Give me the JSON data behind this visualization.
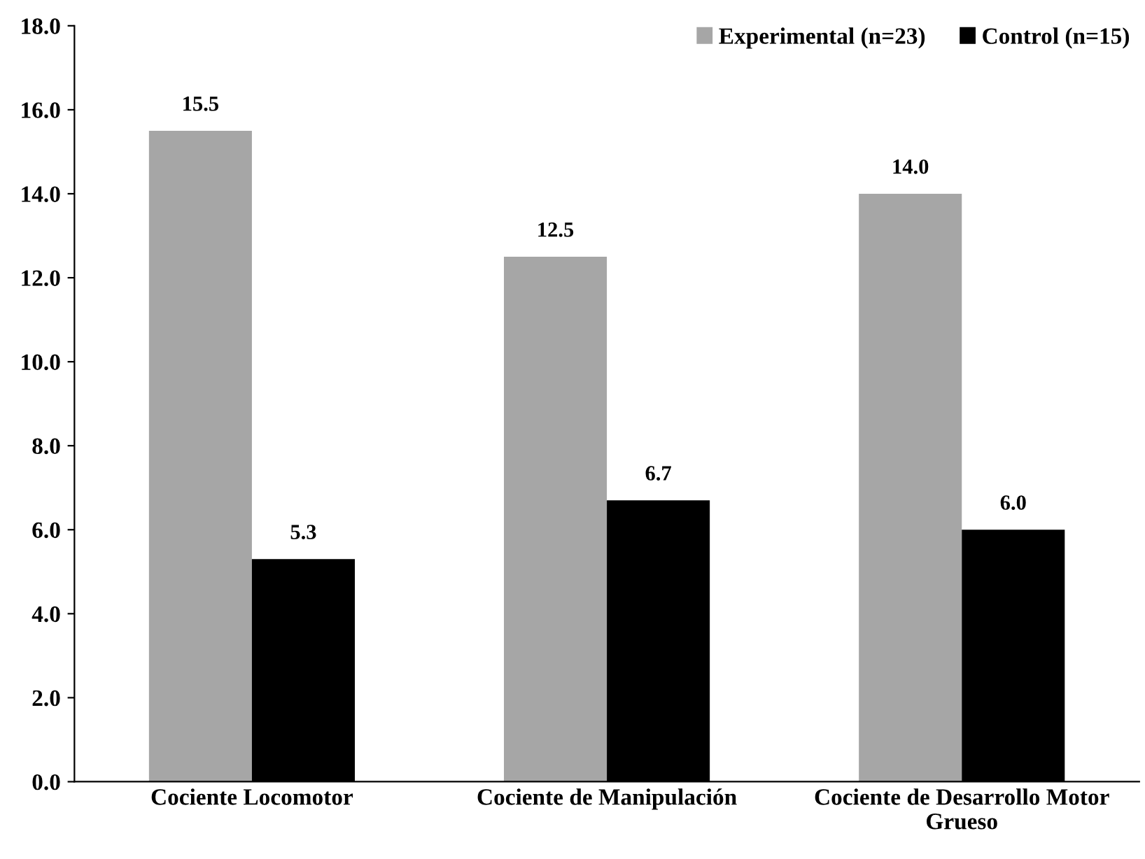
{
  "chart_data": {
    "type": "bar",
    "categories": [
      "Cociente Locomotor",
      "Cociente de Manipulación",
      "Cociente de Desarrollo Motor\nGrueso"
    ],
    "series": [
      {
        "name": "Experimental (n=23)",
        "color": "#a6a6a6",
        "values": [
          15.5,
          12.5,
          14.0
        ],
        "value_labels": [
          "15.5",
          "12.5",
          "14.0"
        ]
      },
      {
        "name": "Control (n=15)",
        "color": "#000000",
        "values": [
          5.3,
          6.7,
          6.0
        ],
        "value_labels": [
          "5.3",
          "6.7",
          "6.0"
        ]
      }
    ],
    "ylim": [
      0,
      18
    ],
    "yticks": [
      {
        "value": 0,
        "label": "0.0"
      },
      {
        "value": 2,
        "label": "2.0"
      },
      {
        "value": 4,
        "label": "4.0"
      },
      {
        "value": 6,
        "label": "6.0"
      },
      {
        "value": 8,
        "label": "8.0"
      },
      {
        "value": 10,
        "label": "10.0"
      },
      {
        "value": 12,
        "label": "12.0"
      },
      {
        "value": 14,
        "label": "14.0"
      },
      {
        "value": 16,
        "label": "16.0"
      },
      {
        "value": 18,
        "label": "18.0"
      }
    ],
    "grid": false,
    "legend": "top right"
  }
}
